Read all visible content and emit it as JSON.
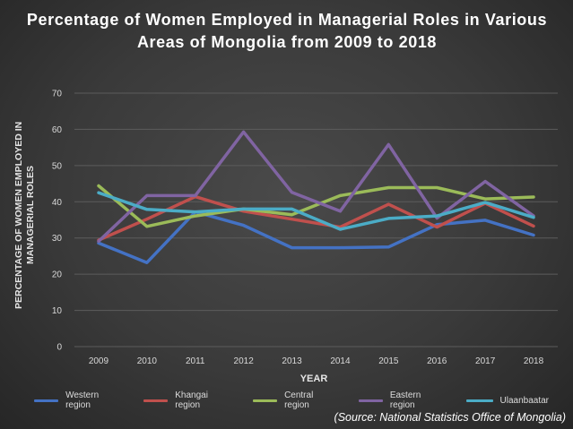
{
  "title": "Percentage of Women Employed in Managerial Roles in Various Areas of Mongolia from 2009 to 2018",
  "source": "(Source: National Statistics Office of Mongolia)",
  "chart_data": {
    "type": "line",
    "title": "Percentage of Women Employed in Managerial Roles in Various Areas of Mongolia from 2009 to 2018",
    "xlabel": "YEAR",
    "ylabel": "PERCENTAGE OF WOMEN EMPLOYED IN MANAGERIAL ROLES",
    "categories": [
      "2009",
      "2010",
      "2011",
      "2012",
      "2013",
      "2014",
      "2015",
      "2016",
      "2017",
      "2018"
    ],
    "ylim": [
      0,
      70
    ],
    "yticks": [
      0,
      10,
      20,
      30,
      40,
      50,
      60,
      70
    ],
    "grid": true,
    "legend_position": "bottom",
    "series": [
      {
        "name": "Western region",
        "color": "#4472c4",
        "values": [
          28.6,
          23.2,
          37.2,
          33.5,
          27.3,
          27.3,
          27.5,
          33.7,
          34.9,
          30.8
        ]
      },
      {
        "name": "Khangai region",
        "color": "#c0504d",
        "values": [
          29.4,
          35.2,
          41.4,
          37.4,
          35.2,
          33.0,
          39.3,
          33.0,
          39.6,
          33.3
        ]
      },
      {
        "name": "Central region",
        "color": "#9bbb59",
        "values": [
          44.4,
          33.2,
          36.1,
          38.0,
          36.4,
          41.7,
          43.9,
          43.9,
          40.8,
          41.3
        ]
      },
      {
        "name": "Eastern region",
        "color": "#8064a2",
        "values": [
          29.1,
          41.7,
          41.7,
          59.3,
          42.6,
          37.4,
          55.8,
          35.5,
          45.6,
          36.1
        ]
      },
      {
        "name": "Ulaanbaatar",
        "color": "#4bacc6",
        "values": [
          42.5,
          37.9,
          37.2,
          38.0,
          38.0,
          32.4,
          35.4,
          36.1,
          39.8,
          35.7
        ]
      }
    ]
  }
}
